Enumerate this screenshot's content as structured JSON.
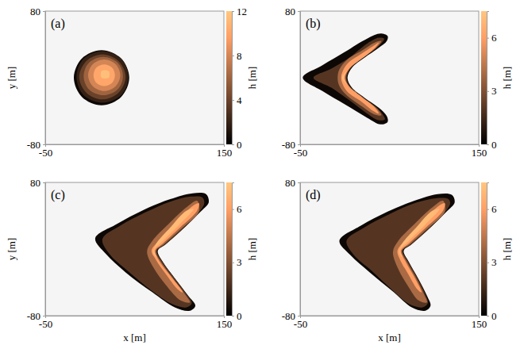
{
  "chart_data": [
    {
      "type": "contourf",
      "title": "(a)",
      "ylabel": "y [m]",
      "xlim": [
        -50,
        150
      ],
      "ylim": [
        -80,
        80
      ],
      "xticks": [
        -50,
        150
      ],
      "yticks": [
        -80,
        80
      ],
      "colorbar": {
        "label": "h [m]",
        "range": [
          0,
          12
        ],
        "ticks": [
          0,
          4,
          8,
          12
        ]
      },
      "contours": [
        {
          "h": 0.5,
          "x": [
            44,
            35,
            13,
            -9,
            -18,
            -9,
            13,
            35
          ],
          "y": [
            0,
            23,
            33,
            23,
            0,
            -23,
            -33,
            -23
          ]
        },
        {
          "h": 2,
          "x": [
            43,
            35,
            14,
            -7,
            -15,
            -7,
            14,
            35
          ],
          "y": [
            1,
            23,
            32,
            23,
            1,
            -21,
            -30,
            -21
          ]
        },
        {
          "h": 4,
          "x": [
            40,
            32,
            14,
            -4,
            -12,
            -4,
            14,
            32
          ],
          "y": [
            1,
            20,
            28,
            20,
            1,
            -18,
            -26,
            -18
          ]
        },
        {
          "h": 6,
          "x": [
            37,
            31,
            15,
            -1,
            -7,
            -1,
            15,
            31
          ],
          "y": [
            2,
            18,
            25,
            18,
            2,
            -14,
            -21,
            -14
          ]
        },
        {
          "h": 8,
          "x": [
            34,
            29,
            16,
            3,
            -2,
            3,
            16,
            29
          ],
          "y": [
            3,
            16,
            22,
            16,
            3,
            -10,
            -16,
            -10
          ]
        },
        {
          "h": 10,
          "x": [
            28,
            25,
            16,
            7,
            4,
            7,
            16,
            25
          ],
          "y": [
            3,
            12,
            16,
            12,
            3,
            -6,
            -10,
            -6
          ]
        },
        {
          "h": 11.5,
          "x": [
            22,
            21,
            17,
            13,
            12,
            13,
            17,
            21
          ],
          "y": [
            4,
            8,
            9,
            8,
            4,
            0,
            -1,
            0
          ]
        }
      ]
    },
    {
      "type": "contourf",
      "title": "(b)",
      "xlim": [
        -50,
        150
      ],
      "ylim": [
        -80,
        80
      ],
      "xticks": [
        -50,
        150
      ],
      "yticks": [
        -80,
        80
      ],
      "colorbar": {
        "label": "h [m]",
        "range": [
          0,
          7.5
        ],
        "ticks": [
          0,
          3,
          6
        ]
      },
      "contours": [
        {
          "h": 0.3,
          "x": [
            -47,
            -25,
            0,
            25,
            40,
            48,
            47,
            38,
            22,
            8,
            3,
            8,
            22,
            38,
            47,
            48,
            40,
            25,
            0,
            -25
          ],
          "y": [
            0,
            15,
            31,
            47,
            53,
            50,
            44,
            36,
            24,
            12,
            0,
            -12,
            -24,
            -36,
            -46,
            -53,
            -56,
            -48,
            -32,
            -16
          ]
        },
        {
          "h": 2,
          "x": [
            -35,
            -15,
            5,
            25,
            38,
            44,
            43,
            36,
            21,
            7,
            2,
            7,
            21,
            36,
            43,
            45,
            38,
            25,
            5,
            -15
          ],
          "y": [
            0,
            11,
            24,
            41,
            48,
            47,
            44,
            36,
            24,
            12,
            0,
            -12,
            -24,
            -36,
            -45,
            -50,
            -51,
            -43,
            -27,
            -12
          ]
        },
        {
          "h": 4,
          "x": [
            41,
            35,
            20,
            6,
            1,
            6,
            20,
            35,
            41,
            33,
            20,
            3,
            -6,
            -8,
            -6,
            3,
            20,
            33
          ],
          "y": [
            44,
            36,
            24,
            12,
            0,
            -12,
            -24,
            -36,
            -45,
            -44,
            -35,
            -22,
            -10,
            0,
            10,
            22,
            33,
            42
          ]
        },
        {
          "h": 6,
          "x": [
            38,
            33,
            19,
            5,
            0,
            5,
            19,
            33,
            38,
            32,
            19,
            3,
            -3,
            -4,
            -3,
            3,
            19,
            32
          ],
          "y": [
            42,
            35,
            23,
            11,
            0,
            -11,
            -23,
            -35,
            -43,
            -40,
            -29,
            -17,
            -6,
            0,
            6,
            17,
            29,
            38
          ]
        },
        {
          "h": 7,
          "x": [
            34,
            30,
            17,
            4,
            -1,
            4,
            14,
            12,
            3,
            -3,
            3,
            15,
            28
          ],
          "y": [
            38,
            33,
            22,
            10,
            0,
            -10,
            -19,
            -17,
            -9,
            0,
            9,
            20,
            31
          ]
        }
      ]
    },
    {
      "type": "contourf",
      "title": "(c)",
      "xlabel": "x [m]",
      "ylabel": "y [m]",
      "xlim": [
        -50,
        150
      ],
      "ylim": [
        -80,
        80
      ],
      "xticks": [
        -50,
        150
      ],
      "yticks": [
        -80,
        80
      ],
      "colorbar": {
        "label": "h [m]",
        "range": [
          0,
          7.5
        ],
        "ticks": [
          0,
          3,
          6
        ]
      },
      "contours": [
        {
          "h": 0.3,
          "x": [
            6,
            30,
            60,
            90,
            115,
            130,
            133,
            124,
            105,
            85,
            76,
            82,
            95,
            110,
            118,
            112,
            95,
            70,
            40,
            18
          ],
          "y": [
            13,
            30,
            47,
            60,
            67,
            66,
            56,
            45,
            25,
            6,
            -2,
            -16,
            -35,
            -56,
            -68,
            -74,
            -70,
            -52,
            -28,
            -6
          ]
        },
        {
          "h": 2,
          "x": [
            14,
            34,
            62,
            90,
            113,
            126,
            128,
            122,
            104,
            84,
            75,
            81,
            94,
            108,
            114,
            108,
            92,
            68,
            42,
            22
          ],
          "y": [
            12,
            28,
            44,
            57,
            63,
            62,
            55,
            44,
            24,
            5,
            -2,
            -15,
            -34,
            -54,
            -65,
            -70,
            -66,
            -49,
            -26,
            -6
          ]
        },
        {
          "h": 4,
          "x": [
            122,
            103,
            83,
            74,
            80,
            93,
            107,
            112,
            102,
            85,
            71,
            64,
            70,
            88,
            108,
            120
          ],
          "y": [
            45,
            25,
            6,
            -2,
            -16,
            -35,
            -55,
            -64,
            -62,
            -43,
            -22,
            -3,
            10,
            30,
            50,
            58
          ]
        },
        {
          "h": 6,
          "x": [
            120,
            101,
            82,
            73,
            78,
            90,
            104,
            98,
            85,
            74,
            69,
            77,
            95,
            113,
            122
          ],
          "y": [
            46,
            26,
            7,
            -2,
            -15,
            -32,
            -52,
            -48,
            -30,
            -13,
            -2,
            10,
            30,
            50,
            55
          ]
        },
        {
          "h": 7,
          "x": [
            116,
            100,
            82,
            72,
            75,
            71,
            74,
            90,
            108
          ],
          "y": [
            48,
            29,
            10,
            -1,
            -10,
            -5,
            6,
            26,
            46
          ]
        }
      ]
    },
    {
      "type": "contourf",
      "title": "(d)",
      "xlabel": "x [m]",
      "xlim": [
        -50,
        150
      ],
      "ylim": [
        -80,
        80
      ],
      "xticks": [
        -50,
        150
      ],
      "yticks": [
        -80,
        80
      ],
      "colorbar": {
        "label": "h [m]",
        "range": [
          0,
          7.5
        ],
        "ticks": [
          0,
          3,
          6
        ]
      },
      "contours": [
        {
          "h": 0.3,
          "x": [
            -6,
            18,
            48,
            78,
            104,
            120,
            123,
            114,
            95,
            75,
            66,
            72,
            82,
            92,
            96,
            90,
            75,
            55,
            28,
            6
          ],
          "y": [
            10,
            28,
            45,
            58,
            66,
            65,
            56,
            45,
            25,
            6,
            -2,
            -16,
            -35,
            -56,
            -68,
            -74,
            -70,
            -52,
            -28,
            -7
          ]
        },
        {
          "h": 2,
          "x": [
            2,
            22,
            50,
            78,
            102,
            116,
            118,
            112,
            94,
            74,
            65,
            71,
            81,
            90,
            93,
            87,
            72,
            53,
            30,
            10
          ],
          "y": [
            10,
            26,
            42,
            55,
            61,
            60,
            55,
            44,
            24,
            5,
            -2,
            -15,
            -34,
            -54,
            -65,
            -70,
            -66,
            -49,
            -26,
            -7
          ]
        },
        {
          "h": 4,
          "x": [
            112,
            93,
            73,
            64,
            70,
            80,
            89,
            92,
            83,
            70,
            59,
            54,
            60,
            78,
            98,
            110
          ],
          "y": [
            45,
            25,
            6,
            -2,
            -16,
            -35,
            -55,
            -64,
            -62,
            -43,
            -22,
            -3,
            10,
            30,
            50,
            58
          ]
        },
        {
          "h": 6,
          "x": [
            110,
            91,
            72,
            63,
            68,
            77,
            86,
            81,
            71,
            62,
            59,
            67,
            85,
            103,
            112
          ],
          "y": [
            46,
            26,
            7,
            -2,
            -15,
            -32,
            -52,
            -48,
            -30,
            -13,
            -2,
            10,
            30,
            50,
            55
          ]
        },
        {
          "h": 7,
          "x": [
            106,
            90,
            72,
            62,
            65,
            61,
            64,
            80,
            98
          ],
          "y": [
            48,
            29,
            10,
            -1,
            -10,
            -5,
            6,
            26,
            46
          ]
        }
      ]
    }
  ]
}
